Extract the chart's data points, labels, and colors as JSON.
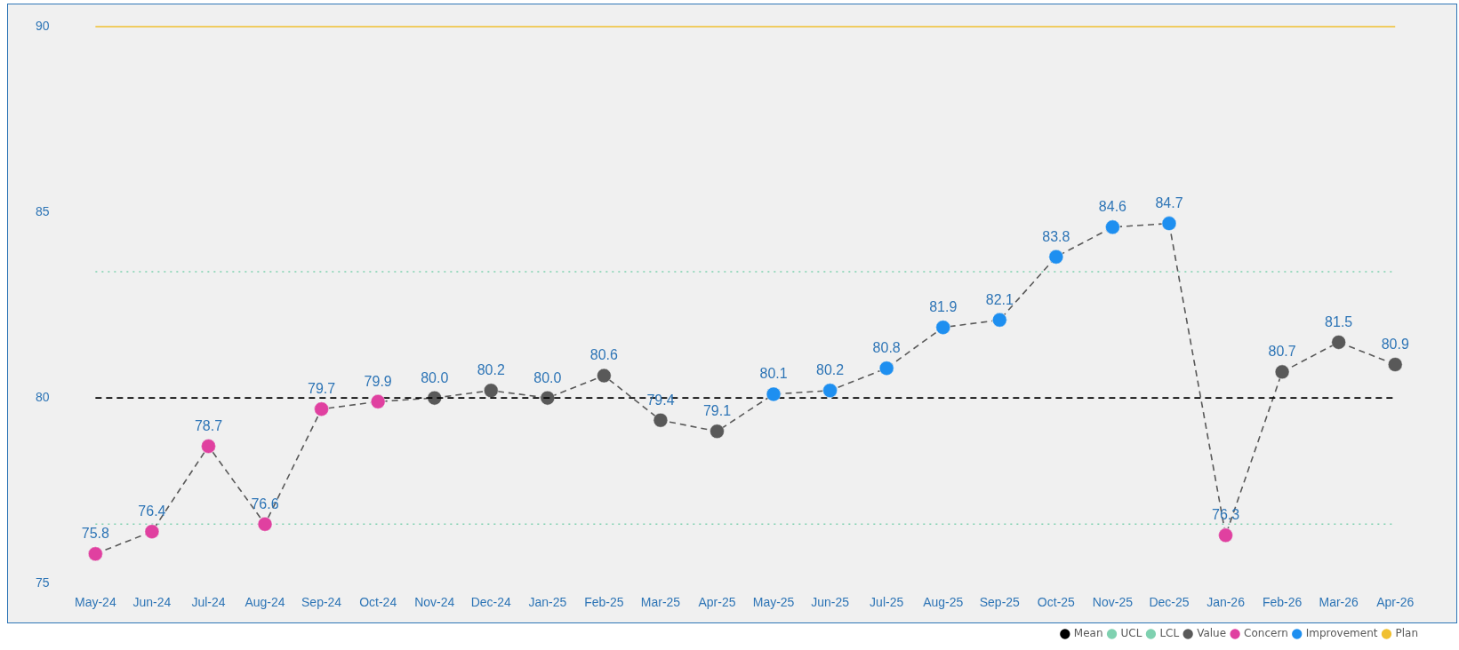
{
  "chart_data": {
    "type": "line",
    "categories": [
      "May-24",
      "Jun-24",
      "Jul-24",
      "Aug-24",
      "Sep-24",
      "Oct-24",
      "Nov-24",
      "Dec-24",
      "Jan-25",
      "Feb-25",
      "Mar-25",
      "Apr-25",
      "May-25",
      "Jun-25",
      "Jul-25",
      "Aug-25",
      "Sep-25",
      "Oct-25",
      "Nov-25",
      "Dec-25",
      "Jan-26",
      "Feb-26",
      "Mar-26",
      "Apr-26"
    ],
    "ylim": [
      75,
      90
    ],
    "yticks": [
      75,
      80,
      85,
      90
    ],
    "grid": false,
    "legend": "bottom right",
    "marker": "circle",
    "series": [
      {
        "name": "Mean",
        "color": "#000000",
        "line_style": "dashed",
        "marker": "none",
        "values": [
          80,
          80,
          80,
          80,
          80,
          80,
          80,
          80,
          80,
          80,
          80,
          80,
          80,
          80,
          80,
          80,
          80,
          80,
          80,
          80,
          80,
          80,
          80,
          80
        ]
      },
      {
        "name": "UCL",
        "color": "#7fd1b0",
        "line_style": "dotted",
        "marker": "none",
        "values": [
          83.4,
          83.4,
          83.4,
          83.4,
          83.4,
          83.4,
          83.4,
          83.4,
          83.4,
          83.4,
          83.4,
          83.4,
          83.4,
          83.4,
          83.4,
          83.4,
          83.4,
          83.4,
          83.4,
          83.4,
          83.4,
          83.4,
          83.4,
          83.4
        ]
      },
      {
        "name": "LCL",
        "color": "#7fd1b0",
        "line_style": "dotted",
        "marker": "none",
        "values": [
          76.6,
          76.6,
          76.6,
          76.6,
          76.6,
          76.6,
          76.6,
          76.6,
          76.6,
          76.6,
          76.6,
          76.6,
          76.6,
          76.6,
          76.6,
          76.6,
          76.6,
          76.6,
          76.6,
          76.6,
          76.6,
          76.6,
          76.6,
          76.6
        ]
      },
      {
        "name": "Value",
        "color": "#595959",
        "line_style": "dashed",
        "marker": "circle",
        "values": [
          75.8,
          76.4,
          78.7,
          76.6,
          79.7,
          79.9,
          80.0,
          80.2,
          80.0,
          80.6,
          79.4,
          79.1,
          80.1,
          80.2,
          80.8,
          81.9,
          82.1,
          83.8,
          84.6,
          84.7,
          76.3,
          80.7,
          81.5,
          80.9
        ],
        "value_labels": [
          "75.8",
          "76.4",
          "78.7",
          "76.6",
          "79.7",
          "79.9",
          "80.0",
          "80.2",
          "80.0",
          "80.6",
          "79.4",
          "79.1",
          "80.1",
          "80.2",
          "80.8",
          "81.9",
          "82.1",
          "83.8",
          "84.6",
          "84.7",
          "76.3",
          "80.7",
          "81.5",
          "80.9"
        ]
      },
      {
        "name": "Concern",
        "type": "scatter",
        "color": "#e040a0",
        "values": [
          75.8,
          76.4,
          78.7,
          76.6,
          79.7,
          79.9,
          null,
          null,
          null,
          null,
          null,
          null,
          null,
          null,
          null,
          null,
          null,
          null,
          null,
          null,
          76.3,
          null,
          null,
          null
        ]
      },
      {
        "name": "Improvement",
        "type": "scatter",
        "color": "#1e8ff0",
        "values": [
          null,
          null,
          null,
          null,
          null,
          null,
          null,
          null,
          null,
          null,
          null,
          null,
          80.1,
          80.2,
          80.8,
          81.9,
          82.1,
          83.8,
          84.6,
          84.7,
          null,
          null,
          null,
          null
        ]
      },
      {
        "name": "Plan",
        "color": "#f0c030",
        "line_style": "solid",
        "marker": "none",
        "values": [
          90,
          90,
          90,
          90,
          90,
          90,
          90,
          90,
          90,
          90,
          90,
          90,
          90,
          90,
          90,
          90,
          90,
          90,
          90,
          90,
          90,
          90,
          90,
          90
        ]
      }
    ]
  }
}
